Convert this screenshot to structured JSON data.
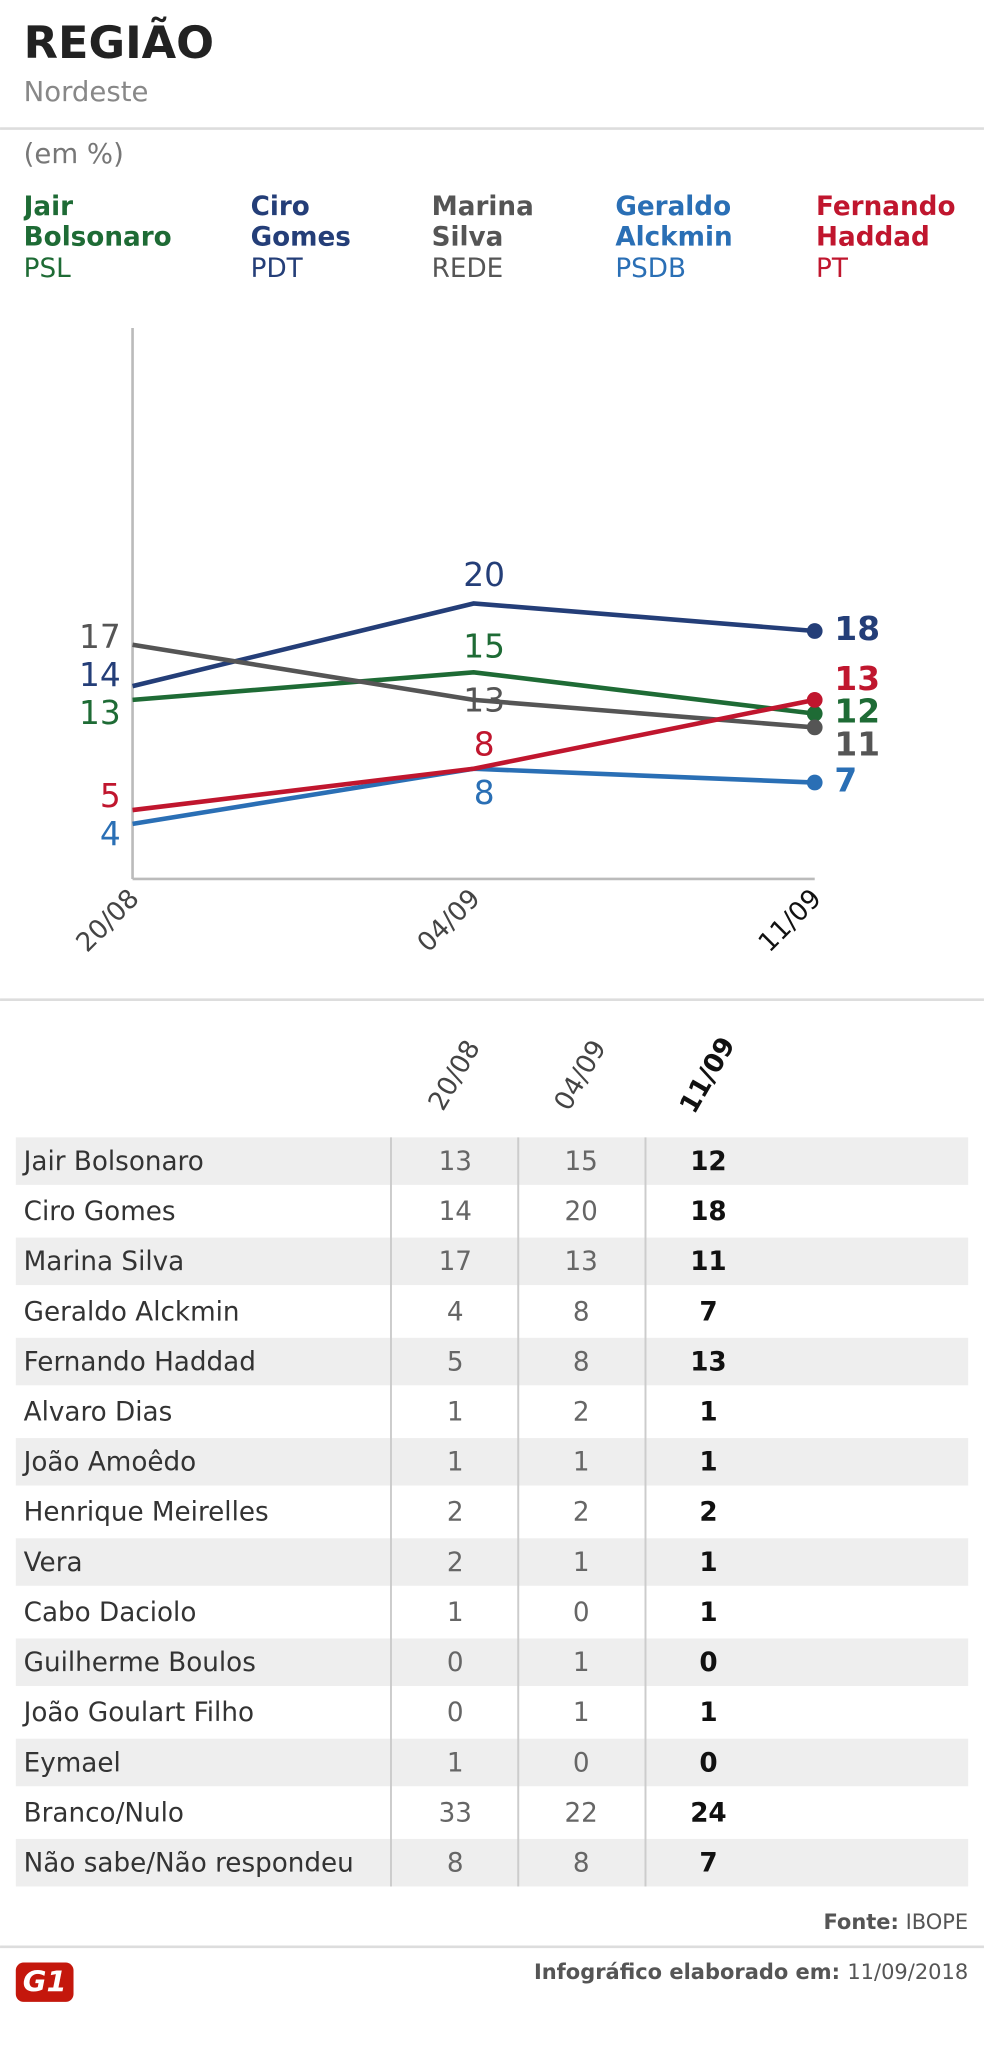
{
  "header": {
    "title": "REGIÃO",
    "subtitle": "Nordeste"
  },
  "chart_data": {
    "type": "line",
    "ylabel": "(em %)",
    "categories": [
      "20/08",
      "04/09",
      "11/09"
    ],
    "ylim": [
      0,
      40
    ],
    "grid": false,
    "series": [
      {
        "name": "Jair Bolsonaro",
        "party": "PSL",
        "color": "#1e6b35",
        "values": [
          13,
          15,
          12
        ]
      },
      {
        "name": "Ciro Gomes",
        "party": "PDT",
        "color": "#243e78",
        "values": [
          14,
          20,
          18
        ]
      },
      {
        "name": "Marina Silva",
        "party": "REDE",
        "color": "#555555",
        "values": [
          17,
          13,
          11
        ]
      },
      {
        "name": "Geraldo Alckmin",
        "party": "PSDB",
        "color": "#2a6fb5",
        "values": [
          4,
          8,
          7
        ]
      },
      {
        "name": "Fernando Haddad",
        "party": "PT",
        "color": "#c0162e",
        "values": [
          5,
          8,
          13
        ]
      }
    ]
  },
  "table": {
    "columns": [
      "20/08",
      "04/09",
      "11/09"
    ],
    "rows": [
      [
        "Jair Bolsonaro",
        13,
        15,
        12
      ],
      [
        "Ciro Gomes",
        14,
        20,
        18
      ],
      [
        "Marina Silva",
        17,
        13,
        11
      ],
      [
        "Geraldo Alckmin",
        4,
        8,
        7
      ],
      [
        "Fernando Haddad",
        5,
        8,
        13
      ],
      [
        "Alvaro Dias",
        1,
        2,
        1
      ],
      [
        "João Amoêdo",
        1,
        1,
        1
      ],
      [
        "Henrique Meirelles",
        2,
        2,
        2
      ],
      [
        "Vera",
        2,
        1,
        1
      ],
      [
        "Cabo Daciolo",
        1,
        0,
        1
      ],
      [
        "Guilherme Boulos",
        0,
        1,
        0
      ],
      [
        "João Goulart Filho",
        0,
        1,
        1
      ],
      [
        "Eymael",
        1,
        0,
        0
      ],
      [
        "Branco/Nulo",
        33,
        22,
        24
      ],
      [
        "Não sabe/Não respondeu",
        8,
        8,
        7
      ]
    ]
  },
  "footer": {
    "source_label": "Fonte:",
    "source": "IBOPE",
    "credit_label": "Infográfico elaborado em:",
    "date": "11/09/2018",
    "logo": "G1"
  }
}
